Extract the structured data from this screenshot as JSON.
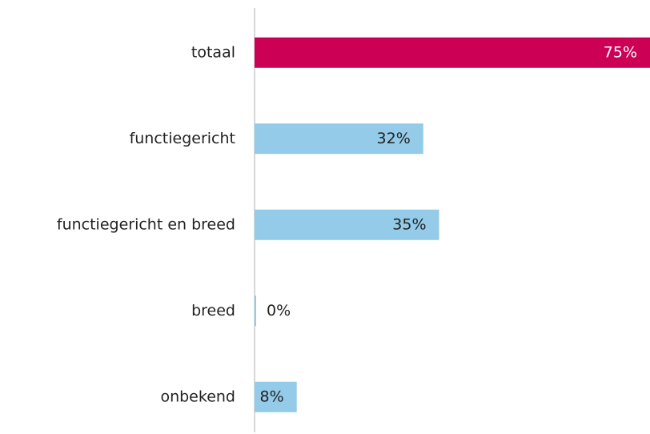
{
  "chart_data": {
    "type": "barh",
    "categories": [
      "totaal",
      "functiegericht",
      "functiegericht en breed",
      "breed",
      "onbekend"
    ],
    "values": [
      75,
      32,
      35,
      0,
      8
    ],
    "value_labels": [
      "75%",
      "32%",
      "35%",
      "0%",
      "8%"
    ],
    "colors": [
      "#cc0055",
      "#93cbe8",
      "#93cbe8",
      "#93cbe8",
      "#93cbe8"
    ]
  }
}
